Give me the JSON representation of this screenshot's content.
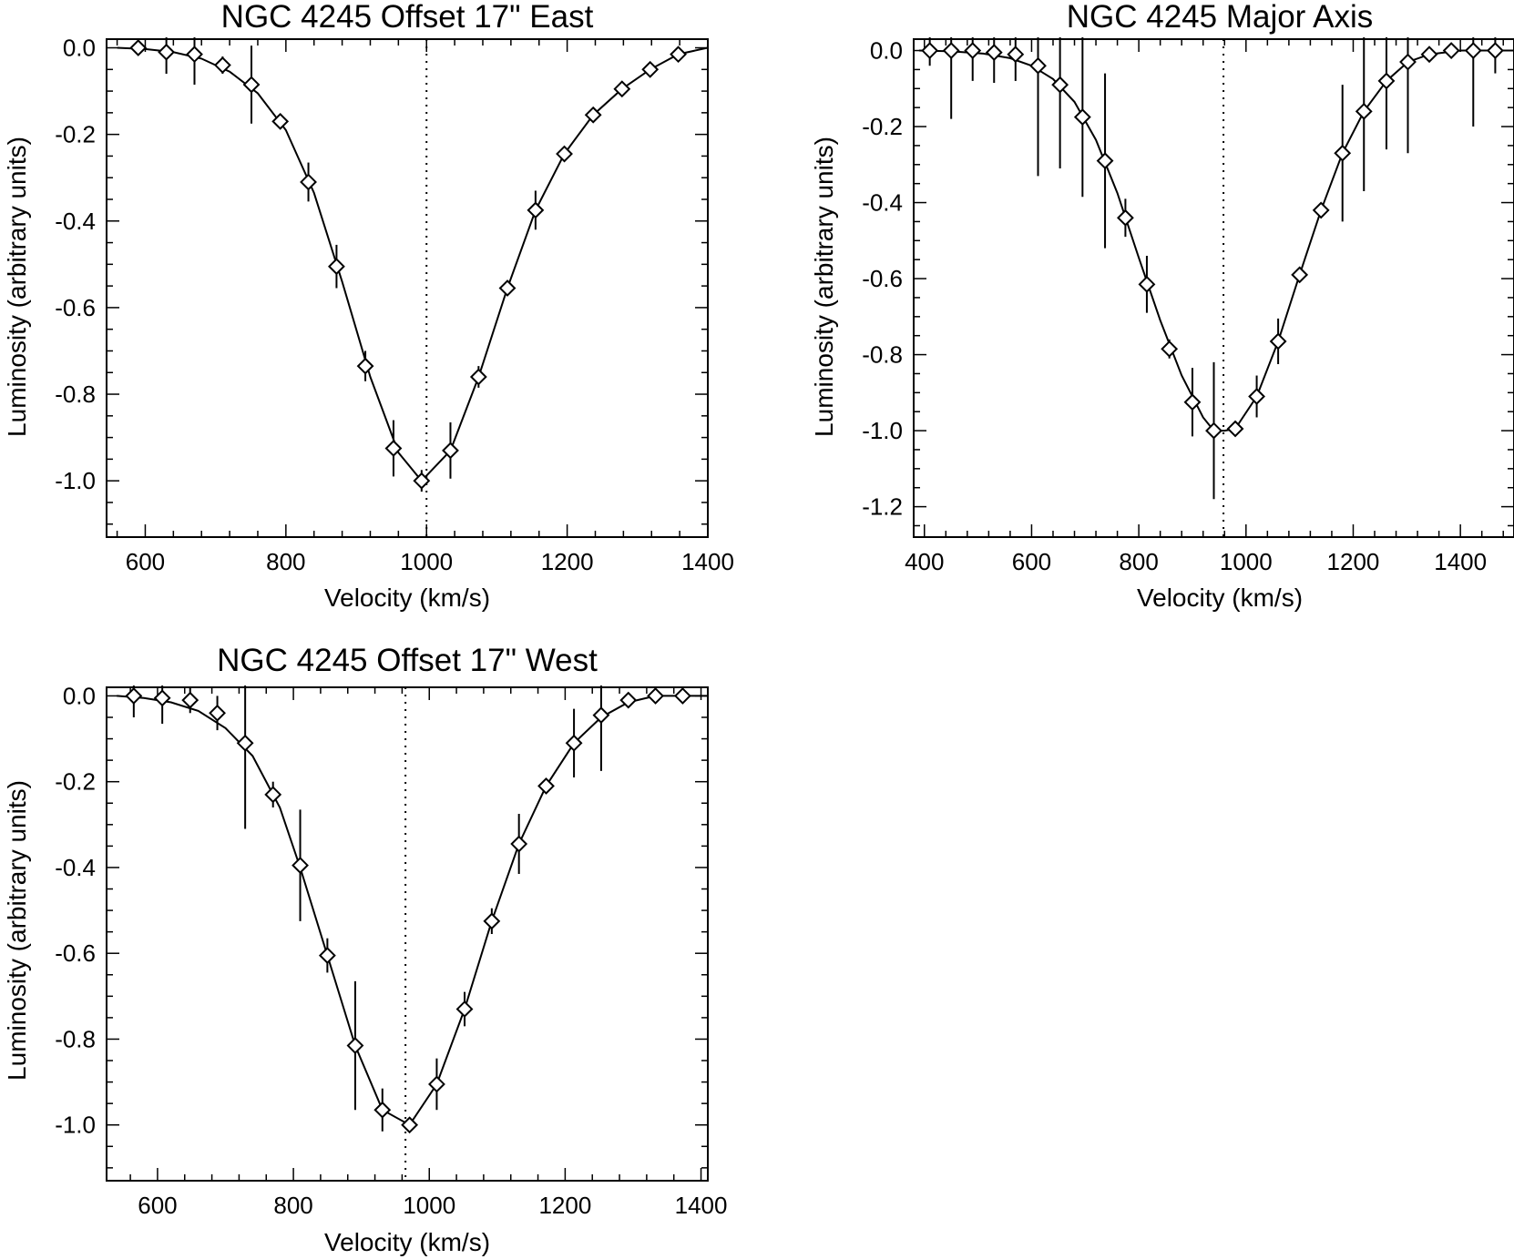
{
  "chart_data": [
    {
      "type": "scatter",
      "title": "NGC 4245 Offset 17\" East",
      "xlabel": "Velocity (km/s)",
      "ylabel": "Luminosity (arbitrary units)",
      "xlim": [
        545,
        1400
      ],
      "ylim": [
        -1.13,
        0.02
      ],
      "xticks": [
        600,
        800,
        1000,
        1200,
        1400
      ],
      "yticks": [
        0.0,
        -0.2,
        -0.4,
        -0.6,
        -0.8,
        -1.0
      ],
      "ytick_labels": [
        "0.0",
        "-0.2",
        "-0.4",
        "-0.6",
        "-0.8",
        "-1.0"
      ],
      "systemic_velocity": 1000,
      "points": {
        "x": [
          590,
          630,
          670,
          710,
          751,
          792,
          832,
          872,
          913,
          953,
          993,
          1034,
          1074,
          1115,
          1155,
          1196,
          1237,
          1278,
          1318,
          1358
        ],
        "y": [
          0.0,
          -0.01,
          -0.015,
          -0.04,
          -0.085,
          -0.17,
          -0.31,
          -0.505,
          -0.735,
          -0.925,
          -1.0,
          -0.93,
          -0.76,
          -0.555,
          -0.375,
          -0.245,
          -0.155,
          -0.095,
          -0.05,
          -0.015
        ],
        "err": [
          0.0,
          0.05,
          0.07,
          0.02,
          0.09,
          0.0,
          0.045,
          0.05,
          0.035,
          0.065,
          0.025,
          0.065,
          0.025,
          0.0,
          0.045,
          0.0,
          0.0,
          0.0,
          0.0,
          0.0
        ]
      },
      "curve": {
        "x": [
          560,
          600,
          640,
          680,
          720,
          760,
          800,
          840,
          880,
          920,
          960,
          993,
          1034,
          1074,
          1115,
          1155,
          1196,
          1237,
          1278,
          1318,
          1358,
          1400
        ],
        "y": [
          0.0,
          -0.003,
          -0.01,
          -0.025,
          -0.055,
          -0.105,
          -0.19,
          -0.335,
          -0.54,
          -0.76,
          -0.935,
          -1.0,
          -0.93,
          -0.76,
          -0.555,
          -0.375,
          -0.245,
          -0.155,
          -0.095,
          -0.05,
          -0.015,
          0.0
        ]
      }
    },
    {
      "type": "scatter",
      "title": "NGC 4245 Major Axis",
      "xlabel": "Velocity (km/s)",
      "ylabel": "Luminosity (arbitrary units)",
      "xlim": [
        380,
        1500
      ],
      "ylim": [
        -1.28,
        0.03
      ],
      "xticks": [
        400,
        600,
        800,
        1000,
        1200,
        1400
      ],
      "yticks": [
        0.0,
        -0.2,
        -0.4,
        -0.6,
        -0.8,
        -1.0,
        -1.2
      ],
      "ytick_labels": [
        "0.0",
        "-0.2",
        "-0.4",
        "-0.6",
        "-0.8",
        "-1.0",
        "-1.2"
      ],
      "systemic_velocity": 958,
      "points": {
        "x": [
          410,
          450,
          490,
          530,
          570,
          612,
          653,
          695,
          737,
          775,
          815,
          857,
          900,
          940,
          980,
          1020,
          1060,
          1100,
          1140,
          1180,
          1220,
          1262,
          1302,
          1342,
          1383,
          1424,
          1465
        ],
        "y": [
          0.0,
          0.0,
          0.0,
          -0.005,
          -0.01,
          -0.04,
          -0.09,
          -0.175,
          -0.29,
          -0.44,
          -0.615,
          -0.785,
          -0.925,
          -1.0,
          -0.995,
          -0.91,
          -0.765,
          -0.59,
          -0.42,
          -0.27,
          -0.16,
          -0.08,
          -0.03,
          -0.01,
          0.0,
          0.0,
          0.0
        ],
        "err": [
          0.04,
          0.18,
          0.08,
          0.08,
          0.07,
          0.29,
          0.22,
          0.21,
          0.23,
          0.05,
          0.075,
          0.025,
          0.09,
          0.18,
          0.02,
          0.055,
          0.06,
          0.0,
          0.0,
          0.18,
          0.21,
          0.18,
          0.24,
          0.0,
          0.0,
          0.2,
          0.06
        ]
      },
      "curve": {
        "x": [
          390,
          450,
          510,
          560,
          600,
          640,
          680,
          720,
          760,
          800,
          840,
          880,
          920,
          940,
          960,
          980,
          1020,
          1060,
          1100,
          1140,
          1180,
          1220,
          1262,
          1302,
          1342,
          1400,
          1460,
          1500
        ],
        "y": [
          0.0,
          -0.002,
          -0.008,
          -0.02,
          -0.04,
          -0.075,
          -0.135,
          -0.235,
          -0.375,
          -0.545,
          -0.71,
          -0.855,
          -0.965,
          -1.0,
          -1.0,
          -0.995,
          -0.91,
          -0.765,
          -0.59,
          -0.42,
          -0.27,
          -0.16,
          -0.08,
          -0.03,
          -0.01,
          0.0,
          0.0,
          0.0
        ]
      }
    },
    {
      "type": "scatter",
      "title": "NGC 4245 Offset 17\" West",
      "xlabel": "Velocity (km/s)",
      "ylabel": "Luminosity (arbitrary units)",
      "xlim": [
        525,
        1410
      ],
      "ylim": [
        -1.13,
        0.02
      ],
      "xticks": [
        600,
        800,
        1000,
        1200,
        1400
      ],
      "yticks": [
        0.0,
        -0.2,
        -0.4,
        -0.6,
        -0.8,
        -1.0
      ],
      "ytick_labels": [
        "0.0",
        "-0.2",
        "-0.4",
        "-0.6",
        "-0.8",
        "-1.0"
      ],
      "systemic_velocity": 965,
      "points": {
        "x": [
          565,
          607,
          648,
          688,
          729,
          770,
          810,
          850,
          891,
          931,
          971,
          1011,
          1052,
          1092,
          1132,
          1172,
          1213,
          1253,
          1293,
          1333,
          1373
        ],
        "y": [
          0.0,
          -0.005,
          -0.01,
          -0.04,
          -0.11,
          -0.23,
          -0.395,
          -0.605,
          -0.815,
          -0.965,
          -1.0,
          -0.905,
          -0.73,
          -0.525,
          -0.345,
          -0.21,
          -0.11,
          -0.045,
          -0.01,
          0.0,
          0.0
        ],
        "err": [
          0.05,
          0.06,
          0.03,
          0.04,
          0.2,
          0.03,
          0.13,
          0.04,
          0.15,
          0.05,
          0.0,
          0.06,
          0.04,
          0.03,
          0.07,
          0.0,
          0.08,
          0.13,
          0.0,
          0.0,
          0.0
        ]
      },
      "curve": {
        "x": [
          540,
          580,
          620,
          660,
          700,
          740,
          780,
          810,
          850,
          891,
          931,
          971,
          1011,
          1052,
          1092,
          1132,
          1172,
          1213,
          1253,
          1293,
          1333,
          1373,
          1410
        ],
        "y": [
          0.0,
          -0.005,
          -0.015,
          -0.035,
          -0.075,
          -0.14,
          -0.26,
          -0.4,
          -0.605,
          -0.815,
          -0.965,
          -1.0,
          -0.905,
          -0.73,
          -0.525,
          -0.345,
          -0.21,
          -0.11,
          -0.05,
          -0.015,
          0.0,
          0.0,
          0.0
        ]
      }
    }
  ]
}
